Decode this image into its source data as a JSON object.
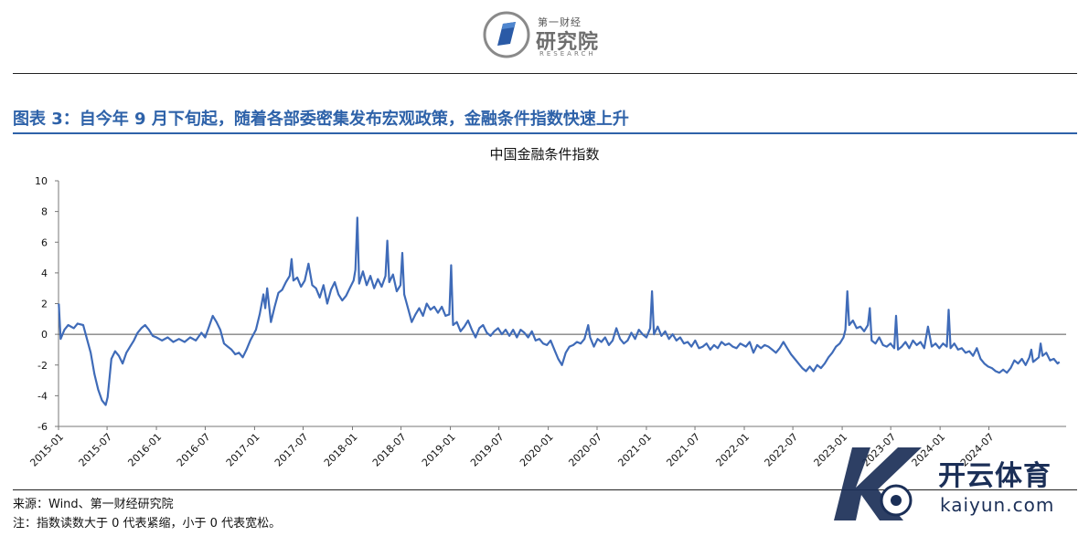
{
  "header": {
    "logo_small": "第一财经",
    "logo_main": "研究院",
    "logo_sub": "RESEARCH"
  },
  "figure_title": "图表 3：自今年 9 月下旬起，随着各部委密集发布宏观政策，金融条件指数快速上升",
  "chart_data": {
    "type": "line",
    "title": "中国金融条件指数",
    "xlabel": "",
    "ylabel": "",
    "ylim": [
      -6,
      10
    ],
    "yticks": [
      -6,
      -4,
      -2,
      0,
      2,
      4,
      6,
      8,
      10
    ],
    "xticks": [
      "2015-01",
      "2015-07",
      "2016-01",
      "2016-07",
      "2017-01",
      "2017-07",
      "2018-01",
      "2018-07",
      "2019-01",
      "2019-07",
      "2020-01",
      "2020-07",
      "2021-01",
      "2021-07",
      "2022-01",
      "2022-07",
      "2023-01",
      "2023-07",
      "2024-01",
      "2024-07"
    ],
    "grid": false,
    "color": "#3f6bb8",
    "series": [
      {
        "name": "",
        "points": [
          [
            "2015-01-02",
            2.0
          ],
          [
            "2015-01-09",
            -0.3
          ],
          [
            "2015-01-23",
            0.3
          ],
          [
            "2015-02-06",
            0.6
          ],
          [
            "2015-02-27",
            0.4
          ],
          [
            "2015-03-13",
            0.7
          ],
          [
            "2015-04-03",
            0.6
          ],
          [
            "2015-04-17",
            -0.3
          ],
          [
            "2015-05-01",
            -1.2
          ],
          [
            "2015-05-15",
            -2.6
          ],
          [
            "2015-05-29",
            -3.6
          ],
          [
            "2015-06-12",
            -4.3
          ],
          [
            "2015-06-26",
            -4.6
          ],
          [
            "2015-07-03",
            -4.1
          ],
          [
            "2015-07-10",
            -2.9
          ],
          [
            "2015-07-17",
            -1.6
          ],
          [
            "2015-07-31",
            -1.1
          ],
          [
            "2015-08-14",
            -1.4
          ],
          [
            "2015-08-28",
            -1.9
          ],
          [
            "2015-09-11",
            -1.2
          ],
          [
            "2015-09-25",
            -0.8
          ],
          [
            "2015-10-09",
            -0.4
          ],
          [
            "2015-10-23",
            0.1
          ],
          [
            "2015-11-06",
            0.4
          ],
          [
            "2015-11-20",
            0.6
          ],
          [
            "2015-12-04",
            0.3
          ],
          [
            "2015-12-18",
            -0.1
          ],
          [
            "2016-01-01",
            -0.2
          ],
          [
            "2016-01-22",
            -0.4
          ],
          [
            "2016-02-12",
            -0.2
          ],
          [
            "2016-03-04",
            -0.5
          ],
          [
            "2016-03-25",
            -0.3
          ],
          [
            "2016-04-15",
            -0.5
          ],
          [
            "2016-05-06",
            -0.2
          ],
          [
            "2016-05-27",
            -0.4
          ],
          [
            "2016-06-17",
            0.1
          ],
          [
            "2016-07-01",
            -0.2
          ],
          [
            "2016-07-15",
            0.5
          ],
          [
            "2016-07-29",
            1.2
          ],
          [
            "2016-08-12",
            0.8
          ],
          [
            "2016-08-26",
            0.3
          ],
          [
            "2016-09-09",
            -0.6
          ],
          [
            "2016-09-23",
            -0.8
          ],
          [
            "2016-10-07",
            -1.0
          ],
          [
            "2016-10-21",
            -1.3
          ],
          [
            "2016-11-04",
            -1.2
          ],
          [
            "2016-11-18",
            -1.5
          ],
          [
            "2016-12-02",
            -1.0
          ],
          [
            "2016-12-16",
            -0.4
          ],
          [
            "2017-01-06",
            0.3
          ],
          [
            "2017-01-20",
            1.3
          ],
          [
            "2017-02-03",
            2.6
          ],
          [
            "2017-02-10",
            1.7
          ],
          [
            "2017-02-17",
            3.0
          ],
          [
            "2017-03-03",
            0.8
          ],
          [
            "2017-03-17",
            1.8
          ],
          [
            "2017-03-31",
            2.7
          ],
          [
            "2017-04-14",
            2.9
          ],
          [
            "2017-04-28",
            3.4
          ],
          [
            "2017-05-12",
            3.8
          ],
          [
            "2017-05-19",
            4.9
          ],
          [
            "2017-05-26",
            3.5
          ],
          [
            "2017-06-09",
            3.7
          ],
          [
            "2017-06-23",
            3.1
          ],
          [
            "2017-07-07",
            3.5
          ],
          [
            "2017-07-21",
            4.6
          ],
          [
            "2017-08-04",
            3.2
          ],
          [
            "2017-08-18",
            3.0
          ],
          [
            "2017-09-01",
            2.4
          ],
          [
            "2017-09-15",
            3.2
          ],
          [
            "2017-09-29",
            2.0
          ],
          [
            "2017-10-13",
            2.9
          ],
          [
            "2017-10-27",
            3.4
          ],
          [
            "2017-11-10",
            2.6
          ],
          [
            "2017-11-24",
            2.2
          ],
          [
            "2017-12-08",
            2.5
          ],
          [
            "2017-12-22",
            3.0
          ],
          [
            "2018-01-05",
            3.5
          ],
          [
            "2018-01-12",
            4.2
          ],
          [
            "2018-01-19",
            7.6
          ],
          [
            "2018-01-26",
            3.3
          ],
          [
            "2018-02-09",
            4.1
          ],
          [
            "2018-02-23",
            3.2
          ],
          [
            "2018-03-09",
            3.8
          ],
          [
            "2018-03-23",
            3.0
          ],
          [
            "2018-04-06",
            3.6
          ],
          [
            "2018-04-20",
            3.1
          ],
          [
            "2018-05-04",
            3.8
          ],
          [
            "2018-05-11",
            6.1
          ],
          [
            "2018-05-18",
            3.4
          ],
          [
            "2018-06-01",
            3.9
          ],
          [
            "2018-06-15",
            2.8
          ],
          [
            "2018-06-29",
            3.2
          ],
          [
            "2018-07-06",
            5.3
          ],
          [
            "2018-07-13",
            2.6
          ],
          [
            "2018-07-27",
            1.7
          ],
          [
            "2018-08-10",
            0.8
          ],
          [
            "2018-08-24",
            1.3
          ],
          [
            "2018-09-07",
            1.7
          ],
          [
            "2018-09-21",
            1.2
          ],
          [
            "2018-10-05",
            2.0
          ],
          [
            "2018-10-19",
            1.6
          ],
          [
            "2018-11-02",
            1.8
          ],
          [
            "2018-11-16",
            1.4
          ],
          [
            "2018-11-30",
            1.8
          ],
          [
            "2018-12-14",
            1.2
          ],
          [
            "2018-12-28",
            1.3
          ],
          [
            "2019-01-04",
            4.5
          ],
          [
            "2019-01-11",
            0.6
          ],
          [
            "2019-01-25",
            0.8
          ],
          [
            "2019-02-08",
            0.2
          ],
          [
            "2019-02-22",
            0.5
          ],
          [
            "2019-03-08",
            0.9
          ],
          [
            "2019-03-22",
            0.3
          ],
          [
            "2019-04-05",
            -0.2
          ],
          [
            "2019-04-19",
            0.4
          ],
          [
            "2019-05-03",
            0.6
          ],
          [
            "2019-05-17",
            0.1
          ],
          [
            "2019-05-31",
            -0.1
          ],
          [
            "2019-06-14",
            0.2
          ],
          [
            "2019-06-28",
            0.4
          ],
          [
            "2019-07-12",
            0.0
          ],
          [
            "2019-07-26",
            0.3
          ],
          [
            "2019-08-09",
            -0.1
          ],
          [
            "2019-08-23",
            0.3
          ],
          [
            "2019-09-06",
            -0.2
          ],
          [
            "2019-09-20",
            0.3
          ],
          [
            "2019-10-04",
            0.1
          ],
          [
            "2019-10-18",
            -0.2
          ],
          [
            "2019-11-01",
            0.2
          ],
          [
            "2019-11-15",
            -0.4
          ],
          [
            "2019-11-29",
            -0.3
          ],
          [
            "2019-12-13",
            -0.6
          ],
          [
            "2019-12-27",
            -0.7
          ],
          [
            "2020-01-10",
            -0.4
          ],
          [
            "2020-01-24",
            -1.0
          ],
          [
            "2020-02-07",
            -1.6
          ],
          [
            "2020-02-21",
            -2.0
          ],
          [
            "2020-03-06",
            -1.2
          ],
          [
            "2020-03-20",
            -0.8
          ],
          [
            "2020-04-03",
            -0.7
          ],
          [
            "2020-04-17",
            -0.5
          ],
          [
            "2020-05-01",
            -0.6
          ],
          [
            "2020-05-15",
            -0.3
          ],
          [
            "2020-05-29",
            0.6
          ],
          [
            "2020-06-05",
            -0.2
          ],
          [
            "2020-06-19",
            -0.8
          ],
          [
            "2020-07-03",
            -0.3
          ],
          [
            "2020-07-17",
            -0.5
          ],
          [
            "2020-07-31",
            -0.2
          ],
          [
            "2020-08-14",
            -0.7
          ],
          [
            "2020-08-28",
            -0.4
          ],
          [
            "2020-09-11",
            0.4
          ],
          [
            "2020-09-25",
            -0.3
          ],
          [
            "2020-10-09",
            -0.6
          ],
          [
            "2020-10-23",
            -0.4
          ],
          [
            "2020-11-06",
            0.1
          ],
          [
            "2020-11-20",
            -0.3
          ],
          [
            "2020-12-04",
            0.3
          ],
          [
            "2020-12-18",
            0.0
          ],
          [
            "2021-01-01",
            -0.2
          ],
          [
            "2021-01-15",
            0.4
          ],
          [
            "2021-01-22",
            2.8
          ],
          [
            "2021-01-29",
            0.0
          ],
          [
            "2021-02-12",
            0.5
          ],
          [
            "2021-02-26",
            -0.1
          ],
          [
            "2021-03-12",
            0.2
          ],
          [
            "2021-03-26",
            -0.3
          ],
          [
            "2021-04-09",
            0.0
          ],
          [
            "2021-04-23",
            -0.4
          ],
          [
            "2021-05-07",
            -0.2
          ],
          [
            "2021-05-21",
            -0.6
          ],
          [
            "2021-06-04",
            -0.5
          ],
          [
            "2021-06-18",
            -0.8
          ],
          [
            "2021-07-02",
            -0.4
          ],
          [
            "2021-07-16",
            -0.9
          ],
          [
            "2021-07-30",
            -0.8
          ],
          [
            "2021-08-13",
            -0.6
          ],
          [
            "2021-08-27",
            -1.0
          ],
          [
            "2021-09-10",
            -0.7
          ],
          [
            "2021-09-24",
            -0.9
          ],
          [
            "2021-10-08",
            -0.5
          ],
          [
            "2021-10-22",
            -0.7
          ],
          [
            "2021-11-05",
            -0.6
          ],
          [
            "2021-11-19",
            -0.8
          ],
          [
            "2021-12-03",
            -0.9
          ],
          [
            "2021-12-17",
            -0.6
          ],
          [
            "2022-01-07",
            -0.8
          ],
          [
            "2022-01-21",
            -0.5
          ],
          [
            "2022-02-04",
            -1.2
          ],
          [
            "2022-02-18",
            -0.7
          ],
          [
            "2022-03-04",
            -0.9
          ],
          [
            "2022-03-18",
            -0.7
          ],
          [
            "2022-04-01",
            -0.8
          ],
          [
            "2022-04-15",
            -1.0
          ],
          [
            "2022-04-29",
            -1.2
          ],
          [
            "2022-05-13",
            -0.9
          ],
          [
            "2022-05-27",
            -0.5
          ],
          [
            "2022-06-10",
            -0.9
          ],
          [
            "2022-06-24",
            -1.3
          ],
          [
            "2022-07-08",
            -1.6
          ],
          [
            "2022-07-22",
            -1.9
          ],
          [
            "2022-08-05",
            -2.2
          ],
          [
            "2022-08-19",
            -2.4
          ],
          [
            "2022-09-02",
            -2.1
          ],
          [
            "2022-09-16",
            -2.4
          ],
          [
            "2022-09-30",
            -2.0
          ],
          [
            "2022-10-14",
            -2.2
          ],
          [
            "2022-10-28",
            -1.9
          ],
          [
            "2022-11-11",
            -1.5
          ],
          [
            "2022-11-25",
            -1.2
          ],
          [
            "2022-12-09",
            -0.8
          ],
          [
            "2022-12-23",
            -0.6
          ],
          [
            "2023-01-06",
            -0.2
          ],
          [
            "2023-01-13",
            0.3
          ],
          [
            "2023-01-20",
            2.8
          ],
          [
            "2023-01-27",
            0.6
          ],
          [
            "2023-02-10",
            0.9
          ],
          [
            "2023-02-24",
            0.4
          ],
          [
            "2023-03-10",
            0.5
          ],
          [
            "2023-03-24",
            0.2
          ],
          [
            "2023-04-07",
            0.6
          ],
          [
            "2023-04-14",
            1.7
          ],
          [
            "2023-04-21",
            -0.4
          ],
          [
            "2023-05-05",
            -0.6
          ],
          [
            "2023-05-19",
            -0.2
          ],
          [
            "2023-06-02",
            -0.7
          ],
          [
            "2023-06-16",
            -0.8
          ],
          [
            "2023-06-30",
            -0.6
          ],
          [
            "2023-07-14",
            -0.9
          ],
          [
            "2023-07-21",
            1.2
          ],
          [
            "2023-07-28",
            -1.0
          ],
          [
            "2023-08-11",
            -0.8
          ],
          [
            "2023-08-25",
            -0.5
          ],
          [
            "2023-09-08",
            -0.9
          ],
          [
            "2023-09-22",
            -0.4
          ],
          [
            "2023-10-06",
            -0.7
          ],
          [
            "2023-10-20",
            -0.5
          ],
          [
            "2023-11-03",
            -0.9
          ],
          [
            "2023-11-17",
            0.5
          ],
          [
            "2023-12-01",
            -0.8
          ],
          [
            "2023-12-15",
            -0.6
          ],
          [
            "2023-12-29",
            -0.9
          ],
          [
            "2024-01-12",
            -0.6
          ],
          [
            "2024-01-26",
            -0.8
          ],
          [
            "2024-02-02",
            1.6
          ],
          [
            "2024-02-09",
            -0.9
          ],
          [
            "2024-02-23",
            -0.6
          ],
          [
            "2024-03-08",
            -1.0
          ],
          [
            "2024-03-22",
            -0.9
          ],
          [
            "2024-04-05",
            -1.2
          ],
          [
            "2024-04-19",
            -1.1
          ],
          [
            "2024-05-03",
            -1.4
          ],
          [
            "2024-05-17",
            -0.9
          ],
          [
            "2024-05-31",
            -1.6
          ],
          [
            "2024-06-14",
            -1.9
          ],
          [
            "2024-06-28",
            -2.1
          ],
          [
            "2024-07-12",
            -2.2
          ],
          [
            "2024-07-26",
            -2.4
          ],
          [
            "2024-08-09",
            -2.5
          ],
          [
            "2024-08-23",
            -2.3
          ],
          [
            "2024-09-06",
            -2.5
          ],
          [
            "2024-09-20",
            -2.2
          ],
          [
            "2024-10-04",
            -1.7
          ],
          [
            "2024-10-18",
            -1.9
          ],
          [
            "2024-11-01",
            -1.6
          ],
          [
            "2024-11-15",
            -2.0
          ],
          [
            "2024-11-29",
            -1.5
          ],
          [
            "2024-12-06",
            -1.0
          ],
          [
            "2024-12-13",
            -1.8
          ],
          [
            "2024-12-27",
            -1.6
          ],
          [
            "2025-01-03",
            -1.5
          ],
          [
            "2025-01-10",
            -0.6
          ],
          [
            "2025-01-17",
            -1.4
          ],
          [
            "2025-01-31",
            -1.2
          ],
          [
            "2025-02-14",
            -1.7
          ],
          [
            "2025-02-28",
            -1.6
          ],
          [
            "2025-03-14",
            -1.9
          ],
          [
            "2025-03-21",
            -1.8
          ]
        ]
      }
    ]
  },
  "notes": {
    "source": "来源：Wind、第一财经研究院",
    "note": "注：指数读数大于 0 代表紧缩，小于 0 代表宽松。"
  },
  "watermark": {
    "text": "开云体育",
    "url": "kaiyun.com"
  }
}
